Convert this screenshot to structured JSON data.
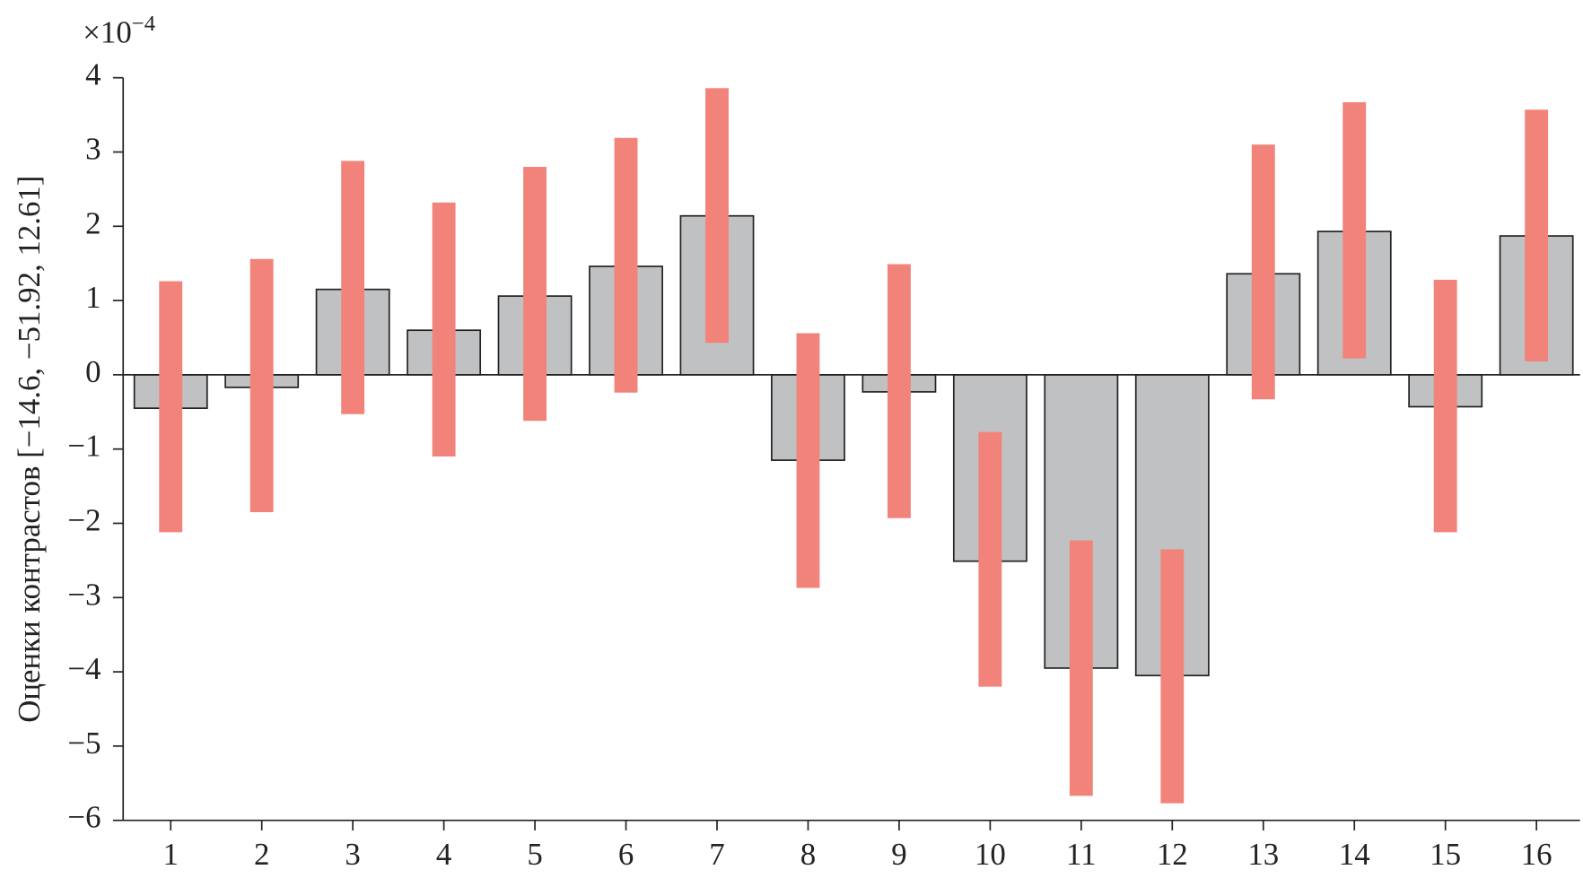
{
  "chart_data": {
    "type": "bar",
    "y_axis_label": "Оценки контрастов [−14.6, −51.92, 12.61]",
    "y_multiplier": {
      "base": "×10",
      "exponent": "−4"
    },
    "categories": [
      "1",
      "2",
      "3",
      "4",
      "5",
      "6",
      "7",
      "8",
      "9",
      "10",
      "11",
      "12",
      "13",
      "14",
      "15",
      "16"
    ],
    "values": [
      -0.45,
      -0.17,
      1.15,
      0.6,
      1.06,
      1.46,
      2.14,
      -1.15,
      -0.23,
      -2.51,
      -3.95,
      -4.05,
      1.36,
      1.93,
      -0.43,
      1.87
    ],
    "color": "#c0c1c3",
    "interval_low": [
      -2.12,
      -1.85,
      -0.53,
      -1.1,
      -0.62,
      -0.24,
      0.43,
      -2.87,
      -1.93,
      -4.2,
      -5.67,
      -5.77,
      -0.33,
      0.22,
      -2.12,
      0.18
    ],
    "interval_high": [
      1.26,
      1.56,
      2.88,
      2.32,
      2.8,
      3.19,
      3.86,
      0.56,
      1.49,
      -0.77,
      -2.23,
      -2.35,
      3.1,
      3.67,
      1.28,
      3.57
    ],
    "interval_color": "#f2837b",
    "ylim": [
      -6,
      4
    ],
    "yticks": [
      {
        "value": -6,
        "label": "−6"
      },
      {
        "value": -5,
        "label": "−5"
      },
      {
        "value": -4,
        "label": "−4"
      },
      {
        "value": -3,
        "label": "−3"
      },
      {
        "value": -2,
        "label": "−2"
      },
      {
        "value": -1,
        "label": "−1"
      },
      0,
      1,
      2,
      3,
      4
    ]
  }
}
